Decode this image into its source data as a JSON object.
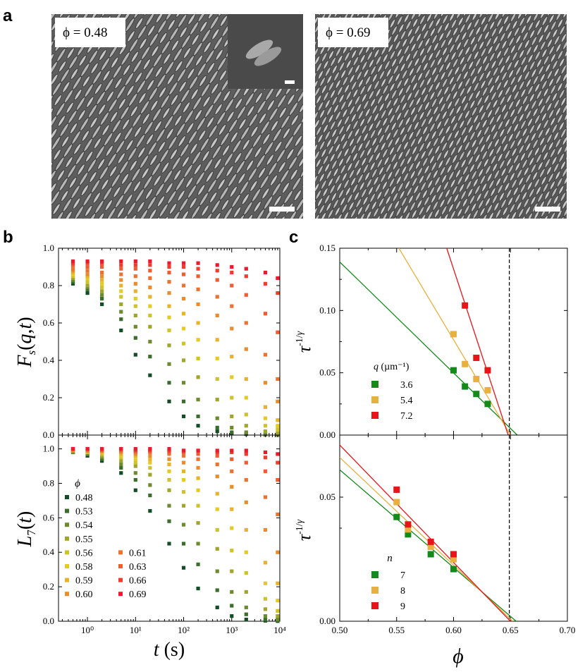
{
  "panel_letters": {
    "a": "a",
    "b": "b",
    "c": "c"
  },
  "images": {
    "left": {
      "phi_label": "ϕ = 0.48",
      "texture": "gray-micrograph-dense-ellipsoids"
    },
    "right": {
      "phi_label": "ϕ = 0.69",
      "texture": "gray-micrograph-dense-ellipsoids"
    }
  },
  "chart_data": [
    {
      "id": "b_top",
      "type": "scatter",
      "ylabel": "F_s(q,t)",
      "xlabel": "",
      "xscale": "log",
      "xlim": [
        0.25,
        10000
      ],
      "ylim": [
        0,
        1.0
      ],
      "yticks": [
        "0.0",
        "0.2",
        "0.4",
        "0.6",
        "0.8",
        "1.0"
      ],
      "series": [
        {
          "name": "0.48",
          "color": "#134d25",
          "x": [
            0.5,
            1,
            2,
            5,
            10,
            20,
            50,
            100,
            200,
            500,
            1000,
            2000,
            5000,
            9000
          ],
          "y": [
            0.81,
            0.76,
            0.7,
            0.56,
            0.43,
            0.32,
            0.18,
            0.1,
            0.05,
            0.02,
            0.01,
            0.005,
            0.002,
            0.001
          ]
        },
        {
          "name": "0.53",
          "color": "#3b6e2a",
          "x": [
            0.5,
            1,
            2,
            5,
            10,
            20,
            50,
            100,
            200,
            500,
            1000,
            2000,
            5000,
            9000
          ],
          "y": [
            0.82,
            0.78,
            0.73,
            0.62,
            0.52,
            0.42,
            0.28,
            0.18,
            0.1,
            0.04,
            0.015,
            0.006,
            0.002,
            0.001
          ]
        },
        {
          "name": "0.54",
          "color": "#6d8a2e",
          "x": [
            0.5,
            1,
            2,
            5,
            10,
            20,
            50,
            100,
            200,
            500,
            1000,
            2000,
            5000,
            9000
          ],
          "y": [
            0.83,
            0.79,
            0.75,
            0.66,
            0.58,
            0.5,
            0.38,
            0.28,
            0.19,
            0.09,
            0.04,
            0.015,
            0.004,
            0.002
          ]
        },
        {
          "name": "0.55",
          "color": "#a0a52c",
          "x": [
            0.5,
            1,
            2,
            5,
            10,
            20,
            50,
            100,
            200,
            500,
            1000,
            2000,
            5000,
            9000
          ],
          "y": [
            0.84,
            0.8,
            0.77,
            0.7,
            0.64,
            0.58,
            0.48,
            0.4,
            0.31,
            0.19,
            0.1,
            0.05,
            0.02,
            0.01
          ]
        },
        {
          "name": "0.56",
          "color": "#cfc22a",
          "x": [
            0.5,
            1,
            2,
            5,
            10,
            20,
            50,
            100,
            200,
            500,
            1000,
            2000,
            5000,
            9000
          ],
          "y": [
            0.85,
            0.82,
            0.79,
            0.74,
            0.69,
            0.64,
            0.56,
            0.49,
            0.41,
            0.3,
            0.2,
            0.11,
            0.05,
            0.03
          ]
        },
        {
          "name": "0.58",
          "color": "#e3cb24",
          "x": [
            0.5,
            1,
            2,
            5,
            10,
            20,
            50,
            100,
            200,
            500,
            1000,
            2000,
            5000,
            9000
          ],
          "y": [
            0.86,
            0.84,
            0.81,
            0.77,
            0.73,
            0.69,
            0.63,
            0.57,
            0.51,
            0.41,
            0.31,
            0.2,
            0.09,
            0.05
          ]
        },
        {
          "name": "0.59",
          "color": "#e8b32b",
          "x": [
            0.5,
            1,
            2,
            5,
            10,
            20,
            50,
            100,
            200,
            500,
            1000,
            2000,
            5000,
            9000
          ],
          "y": [
            0.87,
            0.85,
            0.83,
            0.8,
            0.77,
            0.74,
            0.69,
            0.65,
            0.6,
            0.51,
            0.42,
            0.3,
            0.15,
            0.08
          ]
        },
        {
          "name": "0.60",
          "color": "#e88d2e",
          "x": [
            0.5,
            1,
            2,
            5,
            10,
            20,
            50,
            100,
            200,
            500,
            1000,
            2000,
            5000,
            9000
          ],
          "y": [
            0.88,
            0.86,
            0.85,
            0.83,
            0.81,
            0.79,
            0.76,
            0.73,
            0.7,
            0.64,
            0.57,
            0.46,
            0.28,
            0.18
          ]
        },
        {
          "name": "0.61",
          "color": "#eb7332",
          "x": [
            0.5,
            1,
            2,
            5,
            10,
            20,
            50,
            100,
            200,
            500,
            1000,
            2000,
            5000,
            9000
          ],
          "y": [
            0.89,
            0.88,
            0.87,
            0.86,
            0.85,
            0.84,
            0.82,
            0.8,
            0.78,
            0.74,
            0.69,
            0.6,
            0.43,
            0.3
          ]
        },
        {
          "name": "0.63",
          "color": "#ee5c31",
          "x": [
            0.5,
            1,
            2,
            5,
            10,
            20,
            50,
            100,
            200,
            500,
            1000,
            2000,
            5000,
            9000
          ],
          "y": [
            0.91,
            0.9,
            0.9,
            0.89,
            0.89,
            0.88,
            0.87,
            0.86,
            0.85,
            0.83,
            0.8,
            0.75,
            0.65,
            0.55
          ]
        },
        {
          "name": "0.66",
          "color": "#f03c2d",
          "x": [
            0.5,
            1,
            2,
            5,
            10,
            20,
            50,
            100,
            200,
            500,
            1000,
            2000,
            5000,
            9000
          ],
          "y": [
            0.92,
            0.92,
            0.92,
            0.91,
            0.91,
            0.91,
            0.9,
            0.9,
            0.89,
            0.88,
            0.87,
            0.85,
            0.81,
            0.76
          ]
        },
        {
          "name": "0.69",
          "color": "#ec1a2e",
          "x": [
            0.5,
            1,
            2,
            5,
            10,
            20,
            50,
            100,
            200,
            500,
            1000,
            2000,
            5000,
            9000
          ],
          "y": [
            0.93,
            0.93,
            0.93,
            0.93,
            0.93,
            0.93,
            0.92,
            0.92,
            0.92,
            0.91,
            0.9,
            0.89,
            0.87,
            0.84
          ]
        }
      ]
    },
    {
      "id": "b_bottom",
      "type": "scatter",
      "ylabel": "L_7(t)",
      "xlabel": "t (s)",
      "xscale": "log",
      "xlim": [
        0.25,
        10000
      ],
      "ylim": [
        0,
        1.08
      ],
      "xticks": [
        "10⁰",
        "10¹",
        "10²",
        "10³",
        "10⁴"
      ],
      "yticks": [
        "0.0",
        "0.2",
        "0.4",
        "0.6",
        "0.8",
        "1.0"
      ],
      "legend": {
        "title": "ϕ"
      },
      "series": [
        {
          "name": "0.48",
          "color": "#134d25",
          "x": [
            0.5,
            1,
            2,
            5,
            10,
            20,
            50,
            100,
            200,
            500,
            1000,
            2000,
            5000,
            9000
          ],
          "y": [
            0.98,
            0.96,
            0.93,
            0.86,
            0.76,
            0.64,
            0.45,
            0.31,
            0.19,
            0.08,
            0.03,
            0.01,
            0.003,
            0.001
          ]
        },
        {
          "name": "0.53",
          "color": "#3b6e2a",
          "x": [
            0.5,
            1,
            2,
            5,
            10,
            20,
            50,
            100,
            200,
            500,
            1000,
            2000,
            5000,
            9000
          ],
          "y": [
            0.98,
            0.97,
            0.94,
            0.89,
            0.82,
            0.73,
            0.58,
            0.45,
            0.33,
            0.18,
            0.09,
            0.04,
            0.01,
            0.005
          ]
        },
        {
          "name": "0.54",
          "color": "#6d8a2e",
          "x": [
            0.5,
            1,
            2,
            5,
            10,
            20,
            50,
            100,
            200,
            500,
            1000,
            2000,
            5000,
            9000
          ],
          "y": [
            0.98,
            0.97,
            0.95,
            0.91,
            0.86,
            0.79,
            0.67,
            0.56,
            0.45,
            0.29,
            0.17,
            0.08,
            0.03,
            0.01
          ]
        },
        {
          "name": "0.55",
          "color": "#a0a52c",
          "x": [
            0.5,
            1,
            2,
            5,
            10,
            20,
            50,
            100,
            200,
            500,
            1000,
            2000,
            5000,
            9000
          ],
          "y": [
            0.99,
            0.98,
            0.96,
            0.93,
            0.9,
            0.85,
            0.76,
            0.67,
            0.57,
            0.42,
            0.29,
            0.17,
            0.07,
            0.03
          ]
        },
        {
          "name": "0.56",
          "color": "#cfc22a",
          "x": [
            0.5,
            1,
            2,
            5,
            10,
            20,
            50,
            100,
            200,
            500,
            1000,
            2000,
            5000,
            9000
          ],
          "y": [
            0.99,
            0.98,
            0.97,
            0.95,
            0.92,
            0.89,
            0.82,
            0.75,
            0.67,
            0.53,
            0.41,
            0.28,
            0.13,
            0.06
          ]
        },
        {
          "name": "0.58",
          "color": "#e3cb24",
          "x": [
            0.5,
            1,
            2,
            5,
            10,
            20,
            50,
            100,
            200,
            500,
            1000,
            2000,
            5000,
            9000
          ],
          "y": [
            0.99,
            0.99,
            0.98,
            0.96,
            0.94,
            0.92,
            0.87,
            0.82,
            0.76,
            0.65,
            0.54,
            0.4,
            0.22,
            0.12
          ]
        },
        {
          "name": "0.59",
          "color": "#e8b32b",
          "x": [
            0.5,
            1,
            2,
            5,
            10,
            20,
            50,
            100,
            200,
            500,
            1000,
            2000,
            5000,
            9000
          ],
          "y": [
            0.99,
            0.99,
            0.98,
            0.97,
            0.96,
            0.94,
            0.91,
            0.87,
            0.83,
            0.74,
            0.65,
            0.53,
            0.34,
            0.22
          ]
        },
        {
          "name": "0.60",
          "color": "#e88d2e",
          "x": [
            0.5,
            1,
            2,
            5,
            10,
            20,
            50,
            100,
            200,
            500,
            1000,
            2000,
            5000,
            9000
          ],
          "y": [
            0.99,
            0.99,
            0.99,
            0.98,
            0.97,
            0.96,
            0.94,
            0.92,
            0.89,
            0.84,
            0.78,
            0.69,
            0.53,
            0.4
          ]
        },
        {
          "name": "0.61",
          "color": "#eb7332",
          "x": [
            0.5,
            1,
            2,
            5,
            10,
            20,
            50,
            100,
            200,
            500,
            1000,
            2000,
            5000,
            9000
          ],
          "y": [
            1.0,
            0.99,
            0.99,
            0.99,
            0.98,
            0.98,
            0.97,
            0.96,
            0.94,
            0.91,
            0.87,
            0.82,
            0.72,
            0.62
          ]
        },
        {
          "name": "0.63",
          "color": "#ee5c31",
          "x": [
            0.5,
            1,
            2,
            5,
            10,
            20,
            50,
            100,
            200,
            500,
            1000,
            2000,
            5000,
            9000
          ],
          "y": [
            1.0,
            1.0,
            0.99,
            0.99,
            0.99,
            0.99,
            0.98,
            0.98,
            0.97,
            0.96,
            0.94,
            0.92,
            0.87,
            0.82
          ]
        },
        {
          "name": "0.66",
          "color": "#f03c2d",
          "x": [
            0.5,
            1,
            2,
            5,
            10,
            20,
            50,
            100,
            200,
            500,
            1000,
            2000,
            5000,
            9000
          ],
          "y": [
            1.0,
            1.0,
            1.0,
            1.0,
            0.99,
            0.99,
            0.99,
            0.99,
            0.99,
            0.98,
            0.98,
            0.97,
            0.95,
            0.92
          ]
        },
        {
          "name": "0.69",
          "color": "#ec1a2e",
          "x": [
            0.5,
            1,
            2,
            5,
            10,
            20,
            50,
            100,
            200,
            500,
            1000,
            2000,
            5000,
            9000
          ],
          "y": [
            1.0,
            1.0,
            1.0,
            1.0,
            1.0,
            1.0,
            1.0,
            0.99,
            0.99,
            0.99,
            0.99,
            0.99,
            0.98,
            0.97
          ]
        }
      ]
    },
    {
      "id": "c_top",
      "type": "scatter",
      "ylabel": "τ^-1/γ",
      "xlabel": "",
      "xlim": [
        0.5,
        0.7
      ],
      "ylim": [
        0,
        0.15
      ],
      "yticks": [
        "0.00",
        "0.05",
        "0.10",
        "0.15"
      ],
      "vline_x": 0.649,
      "legend": {
        "title": "q (µm⁻¹)"
      },
      "series": [
        {
          "name": "3.6",
          "color": "#138a1a",
          "x": [
            0.6,
            0.61,
            0.62,
            0.63
          ],
          "y": [
            0.052,
            0.039,
            0.033,
            0.025
          ],
          "fit": [
            [
              0.5,
              0.139
            ],
            [
              0.656,
              0.0
            ]
          ]
        },
        {
          "name": "5.4",
          "color": "#e8b03e",
          "x": [
            0.6,
            0.61,
            0.62,
            0.63
          ],
          "y": [
            0.081,
            0.057,
            0.045,
            0.036
          ],
          "fit": [
            [
              0.552,
              0.15
            ],
            [
              0.65,
              0.0
            ]
          ]
        },
        {
          "name": "7.2",
          "color": "#e8141a",
          "x": [
            0.61,
            0.62,
            0.63
          ],
          "y": [
            0.104,
            0.062,
            0.052
          ],
          "fit": [
            [
              0.594,
              0.15
            ],
            [
              0.648,
              0.0
            ]
          ]
        }
      ]
    },
    {
      "id": "c_bottom",
      "type": "scatter",
      "ylabel": "τ^-1/γ",
      "xlabel": "ϕ",
      "xlim": [
        0.5,
        0.7
      ],
      "ylim": [
        0,
        0.075
      ],
      "xticks": [
        "0.50",
        "0.55",
        "0.60",
        "0.65",
        "0.70"
      ],
      "yticks": [
        "0.00",
        "0.05"
      ],
      "vline_x": 0.649,
      "legend": {
        "title": "n"
      },
      "series": [
        {
          "name": "7",
          "color": "#138a1a",
          "x": [
            0.55,
            0.56,
            0.58,
            0.6
          ],
          "y": [
            0.042,
            0.035,
            0.027,
            0.021
          ],
          "fit": [
            [
              0.5,
              0.061
            ],
            [
              0.655,
              0.0
            ]
          ]
        },
        {
          "name": "8",
          "color": "#e8b03e",
          "x": [
            0.55,
            0.56,
            0.58,
            0.6
          ],
          "y": [
            0.048,
            0.037,
            0.03,
            0.025
          ],
          "fit": [
            [
              0.5,
              0.066
            ],
            [
              0.652,
              0.0
            ]
          ]
        },
        {
          "name": "9",
          "color": "#e8141a",
          "x": [
            0.55,
            0.56,
            0.58,
            0.6
          ],
          "y": [
            0.053,
            0.039,
            0.032,
            0.027
          ],
          "fit": [
            [
              0.5,
              0.071
            ],
            [
              0.65,
              0.0
            ]
          ]
        }
      ]
    }
  ]
}
